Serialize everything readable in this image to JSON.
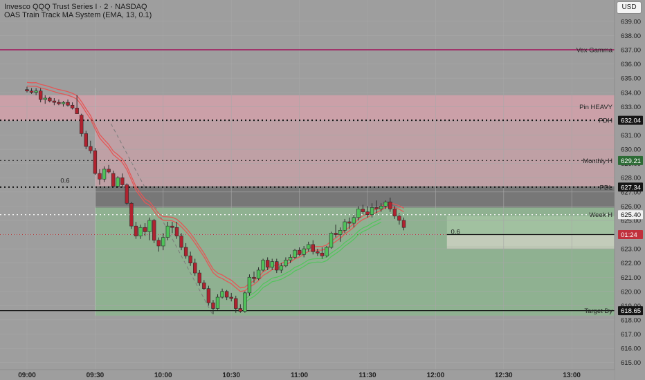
{
  "header": {
    "symbol_line": "Invesco QQQ Trust Series I · 2 · NASDAQ",
    "indicator_line": "OAS Train Track MA System (EMA, 13, 0.1)"
  },
  "currency_button": "USD",
  "colors": {
    "up": "#4fc25a",
    "down": "#b0222f",
    "ema": "#e35757",
    "ema_up": "#55c45f",
    "magenta": "#a0155c"
  },
  "chart_data": {
    "type": "candlestick",
    "ylim": [
      614.5,
      640.5
    ],
    "y_ticks": [
      "615.00",
      "616.00",
      "617.00",
      "618.00",
      "619.00",
      "620.00",
      "621.00",
      "622.00",
      "623.00",
      "624.00",
      "625.00",
      "626.00",
      "627.00",
      "628.00",
      "629.00",
      "630.00",
      "631.00",
      "632.00",
      "633.00",
      "634.00",
      "635.00",
      "636.00",
      "637.00",
      "638.00",
      "639.00"
    ],
    "x_ticks": [
      {
        "label": "09:00",
        "min": 0
      },
      {
        "label": "09:30",
        "min": 30
      },
      {
        "label": "10:00",
        "min": 60
      },
      {
        "label": "10:30",
        "min": 90
      },
      {
        "label": "11:00",
        "min": 120
      },
      {
        "label": "11:30",
        "min": 150
      },
      {
        "label": "12:00",
        "min": 180
      },
      {
        "label": "12:30",
        "min": 210
      },
      {
        "label": "13:00",
        "min": 240
      }
    ],
    "levels": [
      {
        "label": "Vex Gamma",
        "price": 637.0,
        "badge": "",
        "style": "solid-magenta"
      },
      {
        "label": "Pin HEAVY",
        "price": 633.0,
        "badge": "",
        "style": "none"
      },
      {
        "label": "PDH",
        "price": 632.04,
        "badge": "632.04",
        "style": "dotted-thick"
      },
      {
        "label": "Monthly H",
        "price": 629.21,
        "badge": "629.21",
        "style": "dotted"
      },
      {
        "label": "PDL",
        "price": 627.34,
        "badge": "627.34",
        "style": "dotted-thick"
      },
      {
        "label": "Week H",
        "price": 625.4,
        "badge": "625.40",
        "style": "dotted-white"
      },
      {
        "label": "",
        "price": 624.0,
        "badge": "01:24",
        "style": "dotted-red"
      },
      {
        "label": "Target Dy",
        "price": 618.65,
        "badge": "618.65",
        "style": "solid-black"
      }
    ],
    "fib_labels": [
      {
        "text": "0.6",
        "min": 20,
        "price": 627.5
      },
      {
        "text": "0.6",
        "min": 192,
        "price": 623.9
      }
    ],
    "candles": [
      {
        "t": 0,
        "o": 634.2,
        "h": 634.4,
        "l": 634.0,
        "c": 634.1
      },
      {
        "t": 2,
        "o": 634.1,
        "h": 634.3,
        "l": 633.9,
        "c": 634.0
      },
      {
        "t": 4,
        "o": 634.0,
        "h": 634.3,
        "l": 633.8,
        "c": 634.1
      },
      {
        "t": 6,
        "o": 634.1,
        "h": 634.3,
        "l": 633.3,
        "c": 633.5
      },
      {
        "t": 8,
        "o": 633.5,
        "h": 633.8,
        "l": 633.2,
        "c": 633.6
      },
      {
        "t": 10,
        "o": 633.6,
        "h": 633.7,
        "l": 633.3,
        "c": 633.4
      },
      {
        "t": 12,
        "o": 633.4,
        "h": 633.6,
        "l": 633.1,
        "c": 633.3
      },
      {
        "t": 14,
        "o": 633.3,
        "h": 633.5,
        "l": 633.1,
        "c": 633.2
      },
      {
        "t": 16,
        "o": 633.2,
        "h": 633.4,
        "l": 633.0,
        "c": 633.3
      },
      {
        "t": 18,
        "o": 633.3,
        "h": 633.5,
        "l": 633.0,
        "c": 633.1
      },
      {
        "t": 20,
        "o": 633.1,
        "h": 633.3,
        "l": 632.8,
        "c": 632.9
      },
      {
        "t": 22,
        "o": 632.9,
        "h": 633.8,
        "l": 632.6,
        "c": 632.5
      },
      {
        "t": 24,
        "o": 632.4,
        "h": 632.5,
        "l": 630.9,
        "c": 631.1
      },
      {
        "t": 26,
        "o": 631.1,
        "h": 631.3,
        "l": 630.0,
        "c": 630.2
      },
      {
        "t": 28,
        "o": 630.2,
        "h": 630.6,
        "l": 629.7,
        "c": 629.9
      },
      {
        "t": 30,
        "o": 629.9,
        "h": 630.1,
        "l": 628.2,
        "c": 628.3
      },
      {
        "t": 32,
        "o": 628.3,
        "h": 628.6,
        "l": 627.5,
        "c": 627.9
      },
      {
        "t": 34,
        "o": 627.9,
        "h": 628.8,
        "l": 627.7,
        "c": 628.6
      },
      {
        "t": 36,
        "o": 628.6,
        "h": 628.9,
        "l": 628.3,
        "c": 628.4
      },
      {
        "t": 38,
        "o": 628.3,
        "h": 628.5,
        "l": 627.3,
        "c": 627.4
      },
      {
        "t": 40,
        "o": 627.4,
        "h": 628.1,
        "l": 627.3,
        "c": 628.0
      },
      {
        "t": 42,
        "o": 628.0,
        "h": 628.3,
        "l": 627.3,
        "c": 627.5
      },
      {
        "t": 44,
        "o": 627.5,
        "h": 627.6,
        "l": 626.1,
        "c": 626.2
      },
      {
        "t": 46,
        "o": 626.2,
        "h": 626.3,
        "l": 624.4,
        "c": 624.6
      },
      {
        "t": 48,
        "o": 624.6,
        "h": 624.9,
        "l": 623.7,
        "c": 623.9
      },
      {
        "t": 50,
        "o": 623.9,
        "h": 624.7,
        "l": 623.7,
        "c": 624.5
      },
      {
        "t": 52,
        "o": 624.5,
        "h": 624.8,
        "l": 623.9,
        "c": 624.2
      },
      {
        "t": 54,
        "o": 624.2,
        "h": 625.2,
        "l": 623.6,
        "c": 625.0
      },
      {
        "t": 56,
        "o": 625.0,
        "h": 625.1,
        "l": 623.4,
        "c": 623.6
      },
      {
        "t": 58,
        "o": 623.6,
        "h": 623.8,
        "l": 622.8,
        "c": 623.2
      },
      {
        "t": 60,
        "o": 623.2,
        "h": 624.1,
        "l": 622.9,
        "c": 623.8
      },
      {
        "t": 62,
        "o": 623.8,
        "h": 624.9,
        "l": 623.6,
        "c": 624.6
      },
      {
        "t": 64,
        "o": 624.6,
        "h": 624.9,
        "l": 624.1,
        "c": 624.5
      },
      {
        "t": 66,
        "o": 624.5,
        "h": 624.9,
        "l": 623.7,
        "c": 623.9
      },
      {
        "t": 68,
        "o": 623.9,
        "h": 624.1,
        "l": 622.9,
        "c": 623.1
      },
      {
        "t": 70,
        "o": 623.1,
        "h": 623.4,
        "l": 622.3,
        "c": 622.5
      },
      {
        "t": 72,
        "o": 622.5,
        "h": 622.8,
        "l": 621.8,
        "c": 622.0
      },
      {
        "t": 74,
        "o": 622.0,
        "h": 622.3,
        "l": 621.1,
        "c": 621.3
      },
      {
        "t": 76,
        "o": 621.3,
        "h": 621.5,
        "l": 620.4,
        "c": 620.6
      },
      {
        "t": 78,
        "o": 620.6,
        "h": 620.8,
        "l": 620.1,
        "c": 620.2
      },
      {
        "t": 80,
        "o": 620.2,
        "h": 620.4,
        "l": 619.0,
        "c": 619.2
      },
      {
        "t": 82,
        "o": 619.2,
        "h": 619.4,
        "l": 618.4,
        "c": 618.8
      },
      {
        "t": 84,
        "o": 618.8,
        "h": 619.8,
        "l": 618.7,
        "c": 619.6
      },
      {
        "t": 86,
        "o": 619.6,
        "h": 620.2,
        "l": 619.5,
        "c": 620.0
      },
      {
        "t": 88,
        "o": 620.0,
        "h": 620.1,
        "l": 619.4,
        "c": 619.6
      },
      {
        "t": 90,
        "o": 619.6,
        "h": 619.9,
        "l": 619.3,
        "c": 619.5
      },
      {
        "t": 92,
        "o": 619.5,
        "h": 619.7,
        "l": 618.5,
        "c": 618.8
      },
      {
        "t": 94,
        "o": 618.8,
        "h": 619.1,
        "l": 618.5,
        "c": 618.6
      },
      {
        "t": 96,
        "o": 618.6,
        "h": 620.0,
        "l": 618.5,
        "c": 619.9
      },
      {
        "t": 98,
        "o": 619.9,
        "h": 621.2,
        "l": 619.7,
        "c": 621.0
      },
      {
        "t": 100,
        "o": 621.0,
        "h": 621.4,
        "l": 620.6,
        "c": 620.9
      },
      {
        "t": 102,
        "o": 620.9,
        "h": 621.7,
        "l": 620.8,
        "c": 621.5
      },
      {
        "t": 104,
        "o": 621.5,
        "h": 622.3,
        "l": 621.4,
        "c": 622.2
      },
      {
        "t": 106,
        "o": 622.2,
        "h": 622.4,
        "l": 621.5,
        "c": 621.7
      },
      {
        "t": 108,
        "o": 621.7,
        "h": 622.3,
        "l": 621.5,
        "c": 622.1
      },
      {
        "t": 110,
        "o": 622.1,
        "h": 622.3,
        "l": 621.3,
        "c": 621.5
      },
      {
        "t": 112,
        "o": 621.5,
        "h": 622.0,
        "l": 621.3,
        "c": 621.8
      },
      {
        "t": 114,
        "o": 621.8,
        "h": 622.4,
        "l": 621.7,
        "c": 622.2
      },
      {
        "t": 116,
        "o": 622.2,
        "h": 622.6,
        "l": 622.0,
        "c": 622.4
      },
      {
        "t": 118,
        "o": 622.4,
        "h": 623.0,
        "l": 622.3,
        "c": 622.9
      },
      {
        "t": 120,
        "o": 622.9,
        "h": 623.1,
        "l": 622.5,
        "c": 622.6
      },
      {
        "t": 122,
        "o": 622.6,
        "h": 623.2,
        "l": 622.4,
        "c": 623.0
      },
      {
        "t": 124,
        "o": 623.0,
        "h": 623.5,
        "l": 622.8,
        "c": 623.3
      },
      {
        "t": 126,
        "o": 623.3,
        "h": 623.6,
        "l": 622.6,
        "c": 622.8
      },
      {
        "t": 128,
        "o": 622.8,
        "h": 623.0,
        "l": 622.5,
        "c": 622.7
      },
      {
        "t": 130,
        "o": 622.7,
        "h": 623.1,
        "l": 622.3,
        "c": 622.5
      },
      {
        "t": 132,
        "o": 622.5,
        "h": 623.2,
        "l": 622.4,
        "c": 623.1
      },
      {
        "t": 134,
        "o": 623.1,
        "h": 624.2,
        "l": 623.0,
        "c": 624.1
      },
      {
        "t": 136,
        "o": 624.1,
        "h": 624.7,
        "l": 623.8,
        "c": 624.0
      },
      {
        "t": 138,
        "o": 624.0,
        "h": 624.5,
        "l": 623.5,
        "c": 624.3
      },
      {
        "t": 140,
        "o": 624.3,
        "h": 625.1,
        "l": 624.1,
        "c": 624.9
      },
      {
        "t": 142,
        "o": 624.9,
        "h": 625.2,
        "l": 624.4,
        "c": 624.8
      },
      {
        "t": 144,
        "o": 624.8,
        "h": 625.4,
        "l": 624.5,
        "c": 625.2
      },
      {
        "t": 146,
        "o": 625.2,
        "h": 626.0,
        "l": 625.0,
        "c": 625.8
      },
      {
        "t": 148,
        "o": 625.8,
        "h": 626.1,
        "l": 625.4,
        "c": 625.6
      },
      {
        "t": 150,
        "o": 625.6,
        "h": 626.0,
        "l": 625.2,
        "c": 625.4
      },
      {
        "t": 152,
        "o": 625.4,
        "h": 626.2,
        "l": 625.2,
        "c": 625.9
      },
      {
        "t": 154,
        "o": 625.9,
        "h": 626.4,
        "l": 625.5,
        "c": 625.8
      },
      {
        "t": 156,
        "o": 625.8,
        "h": 626.2,
        "l": 625.6,
        "c": 626.0
      },
      {
        "t": 158,
        "o": 626.0,
        "h": 626.4,
        "l": 625.8,
        "c": 626.3
      },
      {
        "t": 160,
        "o": 626.3,
        "h": 626.6,
        "l": 625.6,
        "c": 625.8
      },
      {
        "t": 162,
        "o": 625.8,
        "h": 626.0,
        "l": 625.1,
        "c": 625.3
      },
      {
        "t": 164,
        "o": 625.3,
        "h": 625.5,
        "l": 624.7,
        "c": 625.0
      },
      {
        "t": 166,
        "o": 625.0,
        "h": 625.2,
        "l": 624.3,
        "c": 624.5
      }
    ]
  }
}
